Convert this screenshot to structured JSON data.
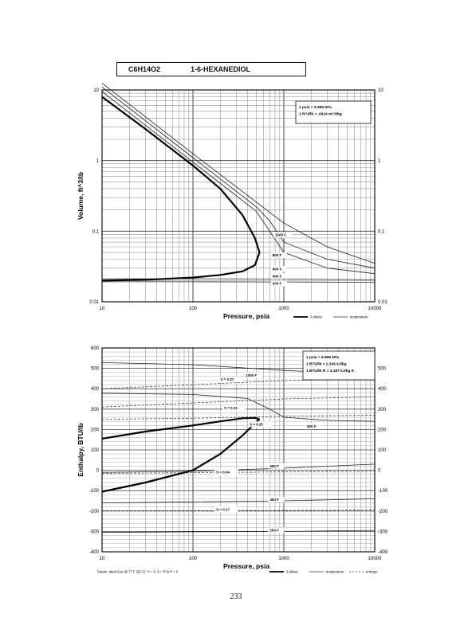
{
  "header": {
    "formula": "C6H14O2",
    "name": "1-6-HEXANEDIOL"
  },
  "page_number": "233",
  "chart_data": [
    {
      "type": "line",
      "id": "volume",
      "xlabel": "Pressure, psia",
      "ylabel": "Volume, ft^3/lb",
      "xscale": "log",
      "yscale": "log",
      "xlim": [
        10,
        10000
      ],
      "ylim": [
        0.01,
        10
      ],
      "x_ticks": [
        "10",
        "100",
        "1000",
        "10000"
      ],
      "y_ticks": [
        "0.01",
        "0.1",
        "1",
        "10"
      ],
      "grid": true,
      "note_lines": [
        "1 psia = 6.895 kPa",
        "1 ft^3/lb = .0624 m^3/kg"
      ],
      "legend": [
        "2 phase",
        "temperature"
      ],
      "series": [
        {
          "name": "2 phase",
          "style": "2phase",
          "x": [
            10,
            30,
            100,
            200,
            350,
            480,
            540,
            480,
            350,
            200,
            100,
            30,
            10
          ],
          "y": [
            8.0,
            2.8,
            0.85,
            0.4,
            0.17,
            0.08,
            0.05,
            0.033,
            0.027,
            0.024,
            0.022,
            0.0205,
            0.02
          ]
        },
        {
          "name": "200 F",
          "style": "temp",
          "x": [
            10,
            100,
            1000,
            10000
          ],
          "y": [
            0.0192,
            0.0192,
            0.0191,
            0.0189
          ],
          "label": "200 F",
          "label_at": [
            750,
            0.0175
          ]
        },
        {
          "name": "400 F",
          "style": "temp",
          "x": [
            10,
            100,
            1000,
            10000
          ],
          "y": [
            0.0212,
            0.0212,
            0.021,
            0.0205
          ],
          "label": "400 F",
          "label_at": [
            750,
            0.0222
          ]
        },
        {
          "name": "600 F",
          "style": "temp",
          "x": [
            10,
            100,
            500,
            1000,
            3000,
            10000
          ],
          "y": [
            9.5,
            0.95,
            0.19,
            0.05,
            0.03,
            0.025
          ],
          "label": "600 F",
          "label_at": [
            750,
            0.028
          ]
        },
        {
          "name": "800 F",
          "style": "temp",
          "x": [
            10,
            100,
            500,
            700,
            1000,
            3000,
            10000
          ],
          "y": [
            11,
            1.1,
            0.22,
            0.14,
            0.07,
            0.04,
            0.03
          ],
          "label": "800 F",
          "label_at": [
            750,
            0.044
          ]
        },
        {
          "name": "1000 F",
          "style": "temp",
          "x": [
            10,
            100,
            1000,
            3000,
            10000
          ],
          "y": [
            12.5,
            1.25,
            0.13,
            0.06,
            0.035
          ],
          "label": "1000 F",
          "label_at": [
            800,
            0.085
          ]
        }
      ]
    },
    {
      "type": "line",
      "id": "enthalpy",
      "xlabel": "Pressure, psia",
      "ylabel": "Enthalpy, BTU/lb",
      "xscale": "log",
      "yscale": "linear",
      "xlim": [
        10,
        10000
      ],
      "ylim": [
        -400,
        600
      ],
      "x_ticks": [
        "10",
        "100",
        "1000",
        "10000"
      ],
      "y_ticks_left": [
        "-400",
        "-300",
        "-200",
        "-100",
        "0",
        "100",
        "200",
        "300",
        "400",
        "500",
        "600"
      ],
      "y_ticks_right": [
        "-400",
        "-300",
        "-200",
        "-100",
        "0",
        "100",
        "200",
        "300",
        "400",
        "500"
      ],
      "grid": true,
      "note_lines": [
        "1 psia = 6.895 kPa",
        "1 BTU/lb = 2.326 kJ/kg",
        "1 BTU/lb R = 4.187 kJ/kg K"
      ],
      "legend": [
        "2 phase",
        "temperature",
        "entropy"
      ],
      "footnote": "Datum: Ideal Gas @ 77 F (25 C), H = 0, S = R ln P = 0",
      "series": [
        {
          "name": "2 phase upper",
          "style": "2phase",
          "x": [
            10,
            30,
            100,
            200,
            350,
            480,
            540
          ],
          "y": [
            155,
            190,
            220,
            240,
            255,
            257,
            250
          ]
        },
        {
          "name": "2 phase lower",
          "style": "2phase",
          "x": [
            10,
            30,
            100,
            200,
            350,
            480,
            540
          ],
          "y": [
            -105,
            -60,
            0,
            80,
            170,
            230,
            250
          ]
        },
        {
          "name": "1000 F",
          "style": "temp",
          "x": [
            10,
            100,
            1000,
            10000
          ],
          "y": [
            528,
            518,
            490,
            470
          ],
          "label": "1000 F",
          "label_at": [
            380,
            460
          ]
        },
        {
          "name": "800 F",
          "style": "temp",
          "x": [
            10,
            100,
            400,
            700,
            1000,
            3000,
            10000
          ],
          "y": [
            378,
            372,
            352,
            300,
            260,
            245,
            240
          ],
          "label": "800 F",
          "label_at": [
            1800,
            210
          ]
        },
        {
          "name": "600 F",
          "style": "temp",
          "x": [
            10,
            100,
            1000,
            10000
          ],
          "y": [
            -10,
            -5,
            10,
            30
          ],
          "label": "600 F",
          "label_at": [
            700,
            15
          ]
        },
        {
          "name": "400 F",
          "style": "temp",
          "x": [
            10,
            100,
            1000,
            10000
          ],
          "y": [
            -160,
            -155,
            -150,
            -140
          ],
          "label": "400 F",
          "label_at": [
            700,
            -150
          ]
        },
        {
          "name": "200 F",
          "style": "temp",
          "x": [
            10,
            100,
            1000,
            10000
          ],
          "y": [
            -305,
            -302,
            -300,
            -295
          ],
          "label": "200 F",
          "label_at": [
            700,
            -300
          ]
        },
        {
          "name": "S = 0.37",
          "style": "entropy",
          "x": [
            10,
            100,
            1000,
            10000
          ],
          "y": [
            400,
            420,
            440,
            450
          ],
          "label": "S = 0.37",
          "label_at": [
            200,
            440
          ]
        },
        {
          "name": "S = 0.31",
          "style": "entropy",
          "x": [
            10,
            100,
            1000,
            10000
          ],
          "y": [
            310,
            330,
            350,
            360
          ],
          "label": "S = 0.31",
          "label_at": [
            220,
            300
          ]
        },
        {
          "name": "S = 0.25",
          "style": "entropy",
          "x": [
            10,
            100,
            1000,
            10000
          ],
          "y": [
            250,
            255,
            265,
            270
          ],
          "label": "S = 0.25",
          "label_at": [
            420,
            220
          ]
        },
        {
          "name": "S = 0.04",
          "style": "entropy",
          "x": [
            10,
            100,
            1000,
            10000
          ],
          "y": [
            -15,
            -12,
            -8,
            -5
          ],
          "label": "S = 0.04",
          "label_at": [
            180,
            -15
          ]
        },
        {
          "name": "S = 0.17",
          "style": "entropy",
          "x": [
            10,
            100,
            1000,
            10000
          ],
          "y": [
            -198,
            -198,
            -197,
            -195
          ],
          "label": "S = 0.17",
          "label_at": [
            180,
            -198
          ]
        }
      ]
    }
  ]
}
